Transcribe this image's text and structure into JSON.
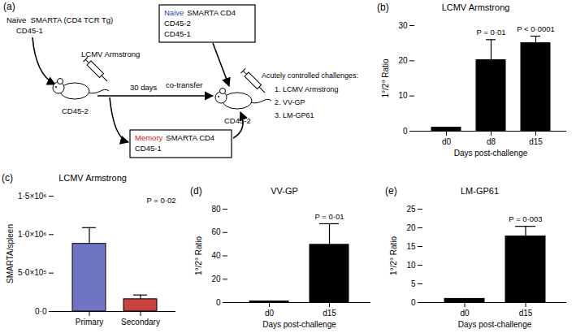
{
  "diagram": {
    "panel_label": "(a)",
    "donor": [
      "Naive  SMARTA (CD4 TCR Tg)",
      "CD45-1"
    ],
    "infection": "LCMV Armstrong",
    "host1": "CD45-2",
    "interval": "30 days",
    "naive_box": {
      "emphasis": "Naive",
      "color": "#2b3fbf",
      "lines": [
        "SMARTA CD4",
        "CD45-2",
        "CD45-1"
      ]
    },
    "memory_box": {
      "emphasis": "Memory",
      "color": "#d42020",
      "lines": [
        "SMARTA CD4",
        "CD45-1"
      ]
    },
    "transfer": "co-transfer",
    "host2": "CD45-2",
    "challenges_title": "Acutely controlled challenges:",
    "challenges": [
      "1. LCMV Armstrong",
      "2. VV-GP",
      "3. LM-GP61"
    ]
  },
  "chart_data": [
    {
      "panel_label": "(b)",
      "type": "bar",
      "title": "LCMV Armstrong",
      "categories": [
        "d0",
        "d8",
        "d15"
      ],
      "values": [
        1,
        20.2,
        25
      ],
      "errors": [
        0,
        5.8,
        2
      ],
      "color": "#000000",
      "ylim": [
        0,
        30
      ],
      "yticks": [
        0,
        10,
        20,
        30
      ],
      "ylabel": "1°/2° Ratio",
      "xlabel": "Days post-challenge",
      "annotations": [
        {
          "category": "d8",
          "text": "P = 0·01"
        },
        {
          "category": "d15",
          "text": "P < 0·0001"
        }
      ]
    },
    {
      "panel_label": "(c)",
      "type": "bar",
      "title": "LCMV Armstrong",
      "categories": [
        "Primary",
        "Secondary"
      ],
      "values": [
        880000,
        160000
      ],
      "errors": [
        210000,
        55000
      ],
      "colors": [
        "#6f74c4",
        "#c8423e"
      ],
      "ylim": [
        0,
        1500000
      ],
      "yticks": [
        {
          "value": 0,
          "label": "0·0"
        },
        {
          "value": 500000,
          "label": "5·0×10⁵"
        },
        {
          "value": 1000000,
          "label": "1·0×10⁶"
        },
        {
          "value": 1500000,
          "label": "1·5×10⁶"
        }
      ],
      "ylabel": "SMARTA/spleen",
      "annotations": [
        {
          "text": "P = 0·02"
        }
      ]
    },
    {
      "panel_label": "(d)",
      "type": "bar",
      "title": "VV-GP",
      "categories": [
        "d0",
        "d15"
      ],
      "values": [
        1,
        49.5
      ],
      "errors": [
        0,
        18
      ],
      "color": "#000000",
      "ylim": [
        0,
        80
      ],
      "yticks": [
        0,
        20,
        40,
        60,
        80
      ],
      "ylabel": "1°/2° Ratio",
      "xlabel": "Days post-challenge",
      "annotations": [
        {
          "category": "d15",
          "text": "P = 0·01"
        }
      ]
    },
    {
      "panel_label": "(e)",
      "type": "bar",
      "title": "LM-GP61",
      "categories": [
        "d0",
        "d15"
      ],
      "values": [
        1,
        17.7
      ],
      "errors": [
        0,
        2.7
      ],
      "color": "#000000",
      "ylim": [
        0,
        25
      ],
      "yticks": [
        0,
        5,
        10,
        15,
        20,
        25
      ],
      "ylabel": "1°/2° Ratio",
      "xlabel": "Days post-challenge",
      "annotations": [
        {
          "category": "d15",
          "text": "P = 0·003"
        }
      ]
    }
  ]
}
